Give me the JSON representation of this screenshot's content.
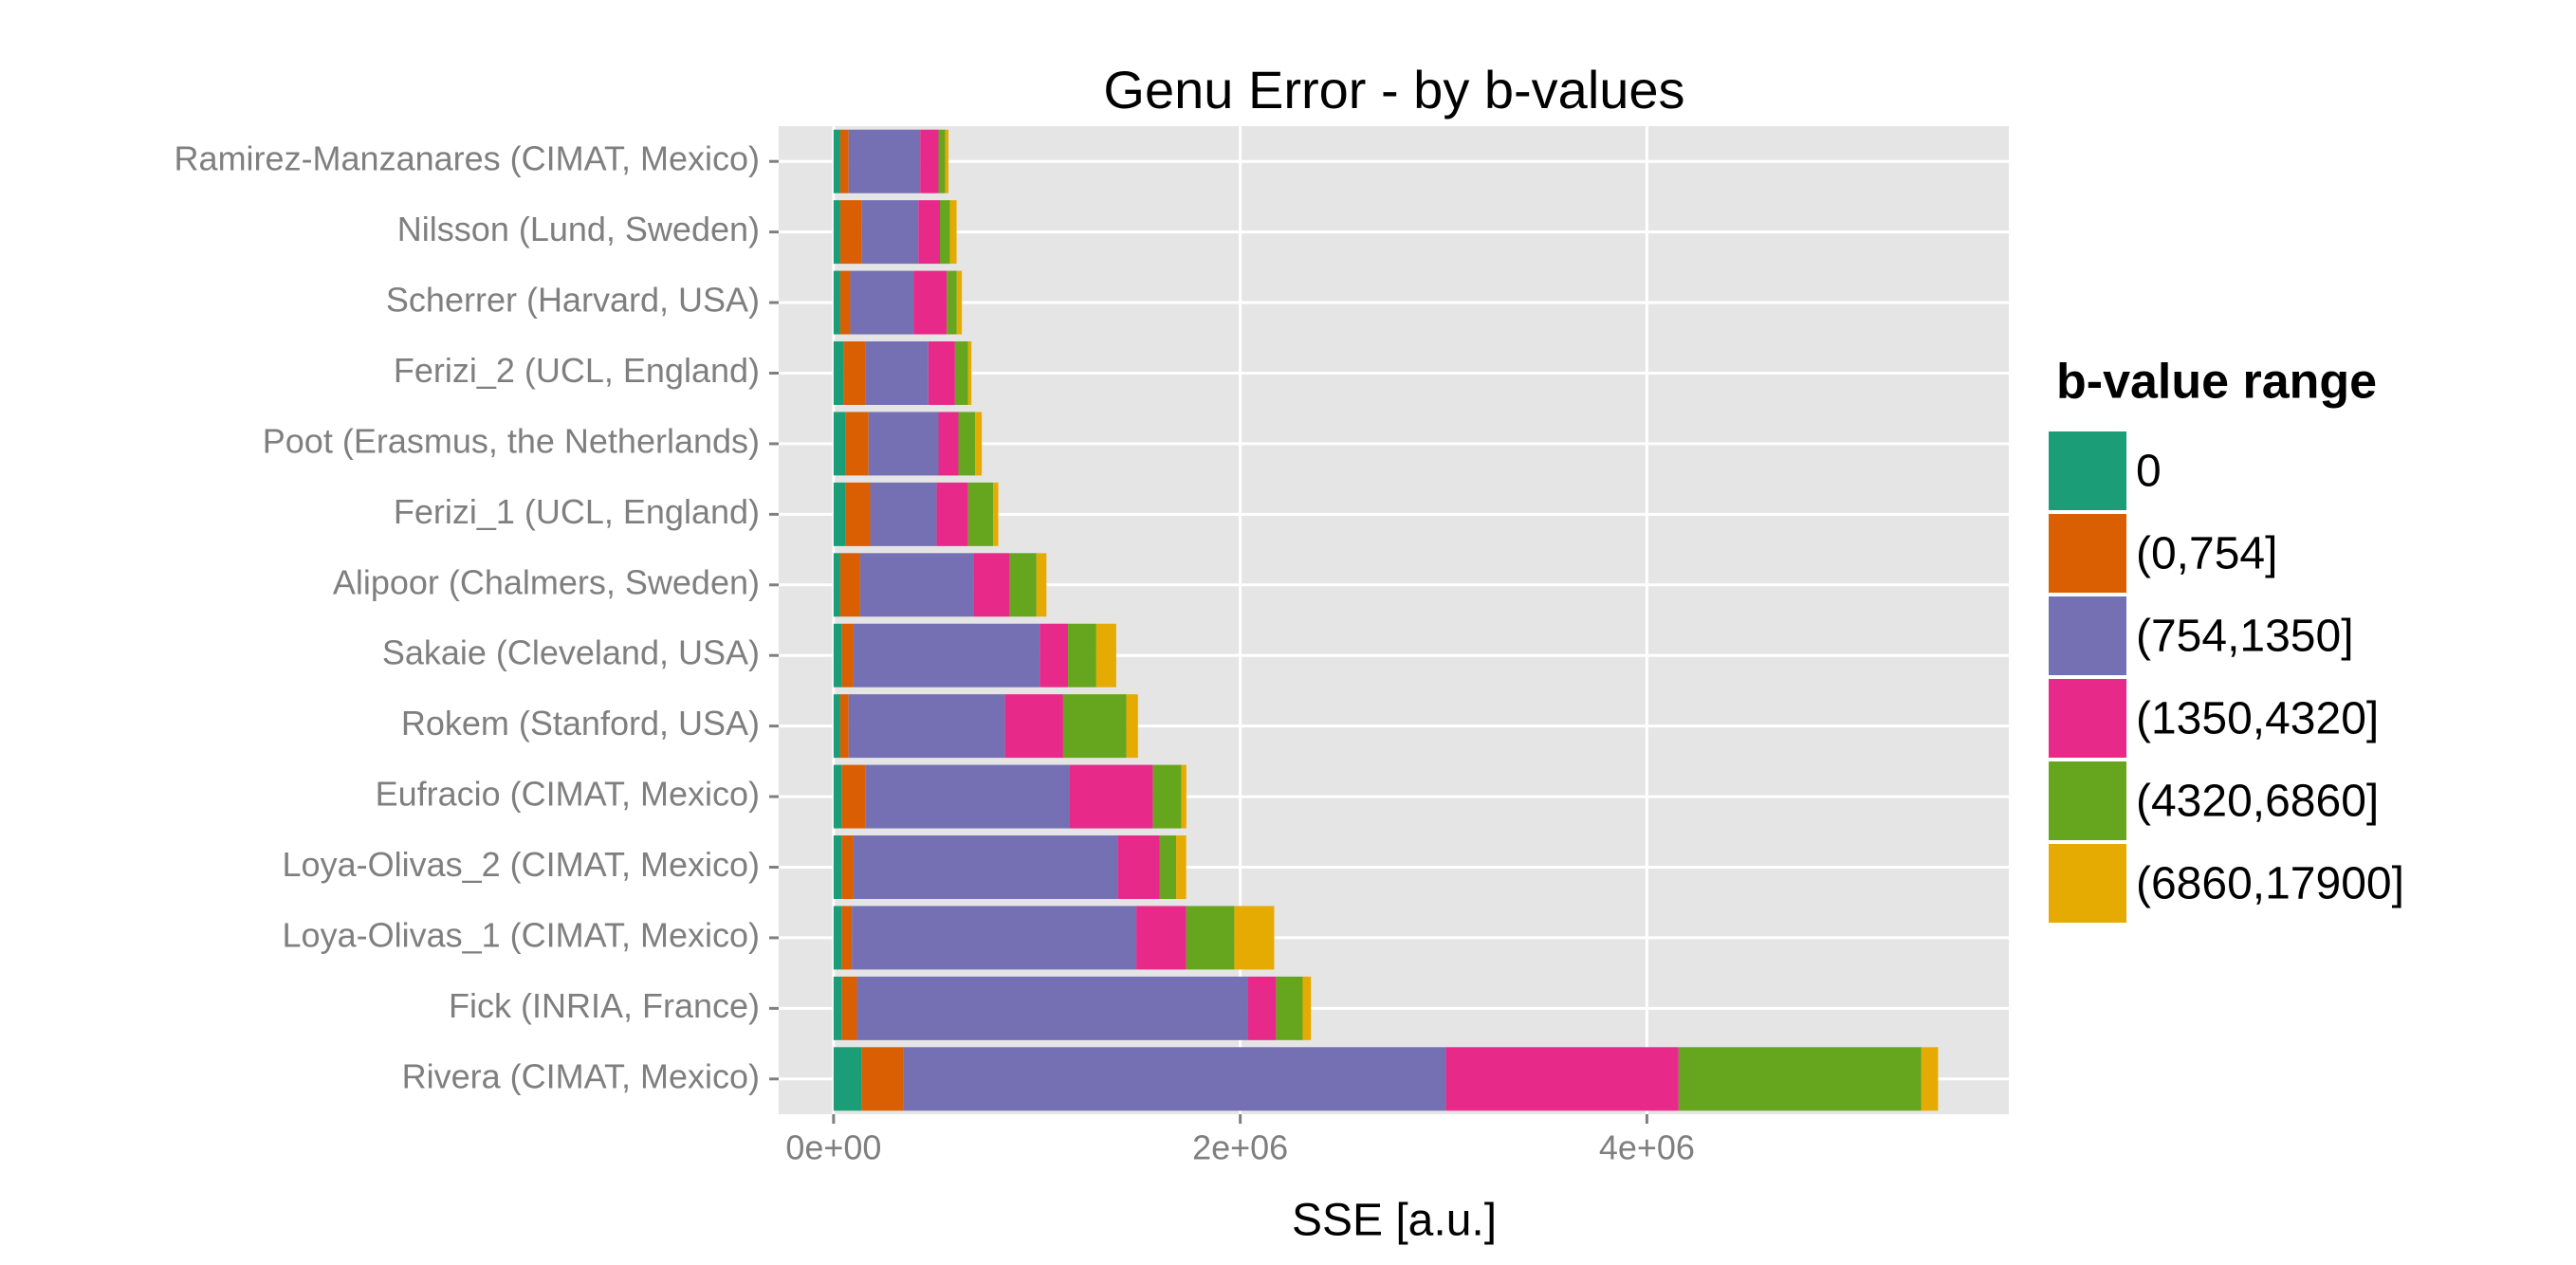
{
  "chart_data": {
    "type": "stacked_barh",
    "title": "Genu Error - by b-values",
    "x_label": "SSE [a.u.]",
    "legend_title": "b-value range",
    "categories": [
      "Ramirez-Manzanares (CIMAT, Mexico)",
      "Nilsson (Lund, Sweden)",
      "Scherrer (Harvard, USA)",
      "Ferizi_2 (UCL, England)",
      "Poot (Erasmus, the Netherlands)",
      "Ferizi_1 (UCL, England)",
      "Alipoor (Chalmers, Sweden)",
      "Sakaie (Cleveland, USA)",
      "Rokem (Stanford, USA)",
      "Eufracio (CIMAT, Mexico)",
      "Loya-Olivas_2 (CIMAT, Mexico)",
      "Loya-Olivas_1 (CIMAT, Mexico)",
      "Fick (INRIA, France)",
      "Rivera (CIMAT, Mexico)"
    ],
    "series": [
      {
        "name": "0",
        "color": "#1b9e77",
        "values": [
          33000,
          33000,
          33000,
          49000,
          57000,
          57000,
          33000,
          41000,
          33000,
          41000,
          41000,
          41000,
          41000,
          139000
        ]
      },
      {
        "name": "(0,754]",
        "color": "#d95f02",
        "values": [
          41000,
          106000,
          49000,
          106000,
          115000,
          123000,
          98000,
          57000,
          41000,
          115000,
          57000,
          49000,
          74000,
          205000
        ]
      },
      {
        "name": "(754,1350]",
        "color": "#7570b3",
        "values": [
          352000,
          278000,
          311000,
          311000,
          344000,
          327000,
          556000,
          916000,
          769000,
          1006000,
          1300000,
          1399000,
          1922000,
          2667000
        ]
      },
      {
        "name": "(1350,4320]",
        "color": "#e7298a",
        "values": [
          90000,
          106000,
          164000,
          131000,
          98000,
          155000,
          180000,
          139000,
          286000,
          409000,
          205000,
          245000,
          139000,
          1145000
        ]
      },
      {
        "name": "(4320,6860]",
        "color": "#66a61e",
        "values": [
          33000,
          49000,
          49000,
          65000,
          82000,
          123000,
          131000,
          139000,
          311000,
          139000,
          82000,
          237000,
          131000,
          1194000
        ]
      },
      {
        "name": "(6860,17900]",
        "color": "#e6ab02",
        "values": [
          16000,
          33000,
          25000,
          16000,
          33000,
          25000,
          49000,
          98000,
          57000,
          25000,
          49000,
          196000,
          41000,
          82000
        ]
      }
    ],
    "xlim": [
      -270000,
      5780000
    ],
    "xticks": [
      {
        "value": 0,
        "label": "0e+00"
      },
      {
        "value": 2000000,
        "label": "2e+06"
      },
      {
        "value": 4000000,
        "label": "4e+06"
      }
    ],
    "grid": true
  }
}
